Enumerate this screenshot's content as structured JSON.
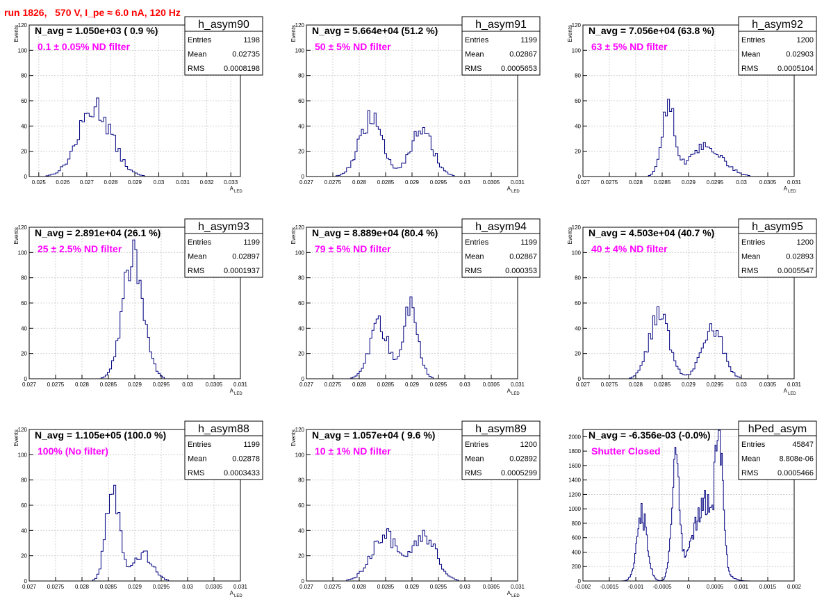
{
  "page_title": "run 1826,   570 V, I_pe ≈ 6.0 nA, 120 Hz",
  "colors": {
    "title": "#ff0000",
    "annotation": "#ff00ff",
    "histogram": "#000080",
    "grid": "#c8c8c8"
  },
  "stat_labels": {
    "entries": "Entries",
    "mean": "Mean",
    "rms": "RMS"
  },
  "chart_data": [
    {
      "type": "bar",
      "histogram": true,
      "name": "h_asym90",
      "navg": "N_avg = 1.050e+03 ( 0.9 %)",
      "note": "0.1 ± 0.05% ND filter",
      "stats": {
        "entries": "1198",
        "mean": "0.02735",
        "rms": "0.0008198"
      },
      "ylabel": "Events",
      "xlabel": "A",
      "xlabel_sub": "LED",
      "xlim": [
        0.0246,
        0.0334
      ],
      "ylim": [
        0,
        120
      ],
      "xticks": [
        0.025,
        0.026,
        0.027,
        0.028,
        0.029,
        0.03,
        0.031,
        0.032,
        0.033
      ],
      "xticklabels": [
        "0.025",
        "0.026",
        "0.027",
        "0.028",
        "0.029",
        "0.03",
        "0.031",
        "0.032",
        "0.033"
      ],
      "yticks": [
        0,
        20,
        40,
        60,
        80,
        100,
        120
      ],
      "peaks": [
        {
          "mu": 0.02735,
          "sigma": 0.00068,
          "amp": 55
        }
      ],
      "bin_width": 0.0001
    },
    {
      "type": "bar",
      "histogram": true,
      "name": "h_asym91",
      "navg": "N_avg = 5.664e+04 (51.2 %)",
      "note": "50 ± 5% ND filter",
      "stats": {
        "entries": "1199",
        "mean": "0.02867",
        "rms": "0.0005653"
      },
      "ylabel": "Events",
      "xlabel": "A",
      "xlabel_sub": "LED",
      "xlim": [
        0.027,
        0.031
      ],
      "ylim": [
        0,
        120
      ],
      "xticks": [
        0.027,
        0.0275,
        0.028,
        0.0285,
        0.029,
        0.0295,
        0.03,
        0.0305,
        0.031
      ],
      "xticklabels": [
        "0.027",
        "0.0275",
        "0.028",
        "0.0285",
        "0.029",
        "0.0295",
        "0.03",
        "0.0305",
        "0.031"
      ],
      "yticks": [
        0,
        20,
        40,
        60,
        80,
        100,
        120
      ],
      "peaks": [
        {
          "mu": 0.02822,
          "sigma": 0.00022,
          "amp": 45
        },
        {
          "mu": 0.02918,
          "sigma": 0.00022,
          "amp": 35
        }
      ],
      "bin_width": 4e-05
    },
    {
      "type": "bar",
      "histogram": true,
      "name": "h_asym92",
      "navg": "N_avg = 7.056e+04 (63.8 %)",
      "note": "63 ± 5% ND filter",
      "stats": {
        "entries": "1200",
        "mean": "0.02903",
        "rms": "0.0005104"
      },
      "ylabel": "Events",
      "xlabel": "A",
      "xlabel_sub": "LED",
      "xlim": [
        0.027,
        0.031
      ],
      "ylim": [
        0,
        120
      ],
      "xticks": [
        0.027,
        0.0275,
        0.028,
        0.0285,
        0.029,
        0.0295,
        0.03,
        0.0305,
        0.031
      ],
      "xticklabels": [
        "0.027",
        "0.0275",
        "0.028",
        "0.0285",
        "0.029",
        "0.0295",
        "0.03",
        "0.0305",
        "0.031"
      ],
      "yticks": [
        0,
        20,
        40,
        60,
        80,
        100,
        120
      ],
      "peaks": [
        {
          "mu": 0.02862,
          "sigma": 0.00012,
          "amp": 58
        },
        {
          "mu": 0.02935,
          "sigma": 0.0003,
          "amp": 24
        }
      ],
      "bin_width": 4e-05
    },
    {
      "type": "bar",
      "histogram": true,
      "name": "h_asym93",
      "navg": "N_avg = 2.891e+04 (26.1 %)",
      "note": "25 ± 2.5% ND filter",
      "stats": {
        "entries": "1199",
        "mean": "0.02897",
        "rms": "0.0001937"
      },
      "ylabel": "Events",
      "xlabel": "A",
      "xlabel_sub": "LED",
      "xlim": [
        0.027,
        0.031
      ],
      "ylim": [
        0,
        120
      ],
      "xticks": [
        0.027,
        0.0275,
        0.028,
        0.0285,
        0.029,
        0.0295,
        0.03,
        0.0305,
        0.031
      ],
      "xticklabels": [
        "0.027",
        "0.0275",
        "0.028",
        "0.0285",
        "0.029",
        "0.0295",
        "0.03",
        "0.0305",
        "0.031"
      ],
      "yticks": [
        0,
        20,
        40,
        60,
        80,
        100,
        120
      ],
      "peaks": [
        {
          "mu": 0.02897,
          "sigma": 0.00019,
          "amp": 102
        }
      ],
      "bin_width": 4e-05
    },
    {
      "type": "bar",
      "histogram": true,
      "name": "h_asym94",
      "navg": "N_avg = 8.889e+04 (80.4 %)",
      "note": "79 ± 5% ND filter",
      "stats": {
        "entries": "1199",
        "mean": "0.02867",
        "rms": "0.000353"
      },
      "ylabel": "Events",
      "xlabel": "A",
      "xlabel_sub": "LED",
      "xlim": [
        0.027,
        0.031
      ],
      "ylim": [
        0,
        120
      ],
      "xticks": [
        0.027,
        0.0275,
        0.028,
        0.0285,
        0.029,
        0.0295,
        0.03,
        0.0305,
        0.031
      ],
      "xticklabels": [
        "0.027",
        "0.0275",
        "0.028",
        "0.0285",
        "0.029",
        "0.0295",
        "0.03",
        "0.0305",
        "0.031"
      ],
      "yticks": [
        0,
        20,
        40,
        60,
        80,
        100,
        120
      ],
      "peaks": [
        {
          "mu": 0.02838,
          "sigma": 0.00018,
          "amp": 42
        },
        {
          "mu": 0.02898,
          "sigma": 0.00014,
          "amp": 56
        }
      ],
      "bin_width": 4e-05
    },
    {
      "type": "bar",
      "histogram": true,
      "name": "h_asym95",
      "navg": "N_avg = 4.503e+04 (40.7 %)",
      "note": "40 ± 4% ND filter",
      "stats": {
        "entries": "1200",
        "mean": "0.02893",
        "rms": "0.0005547"
      },
      "ylabel": "Events",
      "xlabel": "A",
      "xlabel_sub": "LED",
      "xlim": [
        0.027,
        0.031
      ],
      "ylim": [
        0,
        120
      ],
      "xticks": [
        0.027,
        0.0275,
        0.028,
        0.0285,
        0.029,
        0.0295,
        0.03,
        0.0305,
        0.031
      ],
      "xticklabels": [
        "0.027",
        "0.0275",
        "0.028",
        "0.0285",
        "0.029",
        "0.0295",
        "0.03",
        "0.0305",
        "0.031"
      ],
      "yticks": [
        0,
        20,
        40,
        60,
        80,
        100,
        120
      ],
      "peaks": [
        {
          "mu": 0.02845,
          "sigma": 0.00019,
          "amp": 50
        },
        {
          "mu": 0.02945,
          "sigma": 0.00019,
          "amp": 43
        }
      ],
      "bin_width": 4e-05
    },
    {
      "type": "bar",
      "histogram": true,
      "name": "h_asym88",
      "navg": "N_avg = 1.105e+05 (100.0 %)",
      "note": "100% (No filter)",
      "stats": {
        "entries": "1199",
        "mean": "0.02878",
        "rms": "0.0003433"
      },
      "ylabel": "Events",
      "xlabel": "A",
      "xlabel_sub": "LED",
      "xlim": [
        0.027,
        0.031
      ],
      "ylim": [
        0,
        120
      ],
      "xticks": [
        0.027,
        0.0275,
        0.028,
        0.0285,
        0.029,
        0.0295,
        0.03,
        0.0305,
        0.031
      ],
      "xticklabels": [
        "0.027",
        "0.0275",
        "0.028",
        "0.0285",
        "0.029",
        "0.0295",
        "0.03",
        "0.0305",
        "0.031"
      ],
      "yticks": [
        0,
        20,
        40,
        60,
        80,
        100,
        120
      ],
      "peaks": [
        {
          "mu": 0.02858,
          "sigma": 0.00012,
          "amp": 82
        },
        {
          "mu": 0.02915,
          "sigma": 0.00018,
          "amp": 22
        }
      ],
      "bin_width": 4e-05
    },
    {
      "type": "bar",
      "histogram": true,
      "name": "h_asym89",
      "navg": "N_avg = 1.057e+04 ( 9.6 %)",
      "note": "10 ± 1% ND filter",
      "stats": {
        "entries": "1200",
        "mean": "0.02892",
        "rms": "0.0005299"
      },
      "ylabel": "Events",
      "xlabel": "A",
      "xlabel_sub": "LED",
      "xlim": [
        0.027,
        0.031
      ],
      "ylim": [
        0,
        120
      ],
      "xticks": [
        0.027,
        0.0275,
        0.028,
        0.0285,
        0.029,
        0.0295,
        0.03,
        0.0305,
        0.031
      ],
      "xticklabels": [
        "0.027",
        "0.0275",
        "0.028",
        "0.0285",
        "0.029",
        "0.0295",
        "0.03",
        "0.0305",
        "0.031"
      ],
      "yticks": [
        0,
        20,
        40,
        60,
        80,
        100,
        120
      ],
      "peaks": [
        {
          "mu": 0.02848,
          "sigma": 0.00025,
          "amp": 37
        },
        {
          "mu": 0.02925,
          "sigma": 0.00022,
          "amp": 35
        }
      ],
      "bin_width": 4e-05
    },
    {
      "type": "bar",
      "histogram": true,
      "name": "hPed_asym",
      "navg": "N_avg = -6.356e-03 (-0.0%)",
      "note": "Shutter Closed",
      "stats": {
        "entries": "45847",
        "mean": "8.808e-06",
        "rms": "0.0005466"
      },
      "ylabel": "",
      "xlabel": "",
      "xlabel_sub": "",
      "xlim": [
        -0.002,
        0.002
      ],
      "ylim": [
        0,
        2100
      ],
      "xticks": [
        -0.002,
        -0.0015,
        -0.001,
        -0.0005,
        0,
        0.0005,
        0.001,
        0.0015,
        0.002
      ],
      "xticklabels": [
        "-0.002",
        "-0.0015",
        "-0.001",
        "-0.0005",
        "0",
        "0.0005",
        "0.001",
        "0.0015",
        "0.002"
      ],
      "yticks": [
        0,
        200,
        400,
        600,
        800,
        1000,
        1200,
        1400,
        1600,
        1800,
        2000
      ],
      "peaks": [
        {
          "mu": -0.00088,
          "sigma": 0.0001,
          "amp": 900
        },
        {
          "mu": -0.00025,
          "sigma": 7.5e-05,
          "amp": 1600
        },
        {
          "mu": 0.0003,
          "sigma": 0.00022,
          "amp": 1050
        },
        {
          "mu": 0.00058,
          "sigma": 7e-05,
          "amp": 1500
        }
      ],
      "bin_width": 2e-05
    }
  ]
}
